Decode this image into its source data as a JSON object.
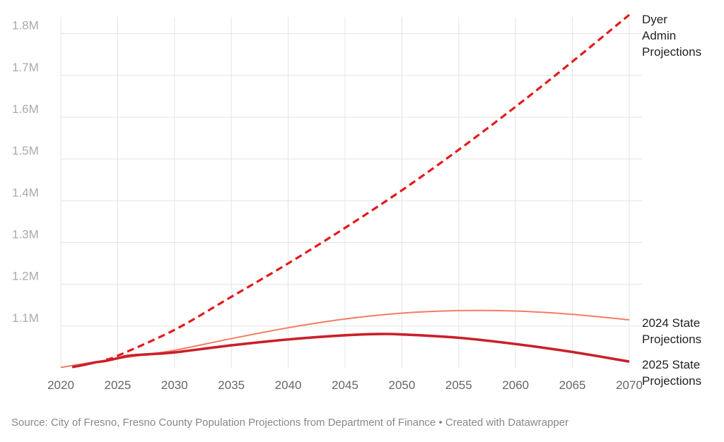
{
  "chart_data": {
    "type": "line",
    "title": "",
    "xlabel": "",
    "ylabel": "",
    "xlim": [
      2020,
      2070
    ],
    "ylim": [
      1000000,
      1850000
    ],
    "grid": true,
    "x_ticks": [
      2020,
      2025,
      2030,
      2035,
      2040,
      2045,
      2050,
      2055,
      2060,
      2065,
      2070
    ],
    "x_tick_labels": [
      "2020",
      "2025",
      "2030",
      "2035",
      "2040",
      "2045",
      "2050",
      "2055",
      "2060",
      "2065",
      "2070"
    ],
    "y_ticks": [
      1100000,
      1200000,
      1300000,
      1400000,
      1500000,
      1600000,
      1700000,
      1800000
    ],
    "y_tick_labels": [
      "1.1M",
      "1.2M",
      "1.3M",
      "1.4M",
      "1.5M",
      "1.6M",
      "1.7M",
      "1.8M"
    ],
    "series": [
      {
        "name": "Dyer Admin Projections",
        "label_lines": [
          "Dyer",
          "Admin",
          "Projections"
        ],
        "color": "#e31a1c",
        "style": "dashed",
        "x": [
          2024,
          2025,
          2030,
          2035,
          2040,
          2045,
          2050,
          2055,
          2060,
          2065,
          2070
        ],
        "y": [
          1020000,
          1029000,
          1091000,
          1170000,
          1250000,
          1335000,
          1425000,
          1522000,
          1625000,
          1733000,
          1845000
        ]
      },
      {
        "name": "2024 State Projections",
        "label_lines": [
          "2024 State",
          "Projections"
        ],
        "color": "#f47c64",
        "style": "thin",
        "x": [
          2020,
          2022,
          2024,
          2025,
          2027,
          2030,
          2035,
          2040,
          2045,
          2050,
          2055,
          2060,
          2065,
          2070
        ],
        "y": [
          1001000,
          1010000,
          1017000,
          1022000,
          1030000,
          1042000,
          1070000,
          1096000,
          1117000,
          1131000,
          1137000,
          1136000,
          1128000,
          1115000
        ]
      },
      {
        "name": "2025 State Projections",
        "label_lines": [
          "2025 State",
          "Projections"
        ],
        "color": "#c9202a",
        "style": "thick",
        "x": [
          2021,
          2022,
          2023,
          2024,
          2025,
          2026,
          2028,
          2030,
          2035,
          2040,
          2045,
          2048,
          2050,
          2055,
          2060,
          2065,
          2070
        ],
        "y": [
          1002000,
          1007000,
          1013000,
          1017000,
          1023000,
          1029000,
          1033000,
          1037000,
          1054000,
          1068000,
          1078000,
          1081000,
          1080000,
          1072000,
          1057000,
          1038000,
          1015000
        ]
      }
    ]
  },
  "source_note": "Source: City of Fresno, Fresno County Population Projections from Department of Finance • Created with Datawrapper",
  "colors": {
    "grid": "#e4e4e4",
    "y_tick_text": "#aaaaaa",
    "x_tick_text": "#666666"
  }
}
